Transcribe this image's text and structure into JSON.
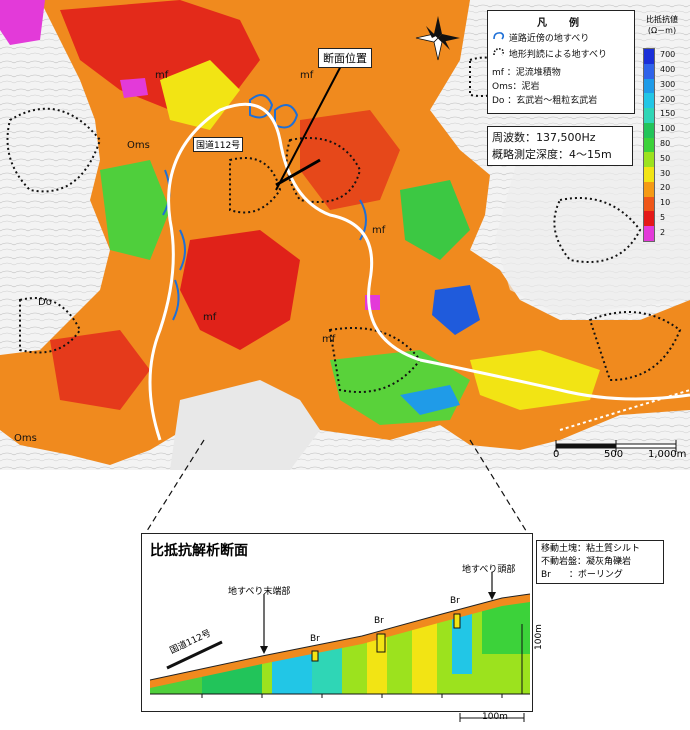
{
  "legend": {
    "title": "凡　例",
    "items": [
      {
        "symbol": "landslide-blue",
        "label": "道路近傍の地すべり"
      },
      {
        "symbol": "landslide-dotted",
        "label": "地形判読による地すべり"
      },
      {
        "symbol": "mf",
        "label": "mf ：泥流堆積物"
      },
      {
        "symbol": "Oms",
        "label": "Oms：泥岩"
      },
      {
        "symbol": "Do",
        "label": "Do ：玄武岩～粗粒玄武岩"
      }
    ]
  },
  "survey": {
    "frequency": "周波数：137,500Hz",
    "depth": "概略測定深度：4～15m"
  },
  "colorbar": {
    "title": "比抵抗値",
    "unit": "(Ω－m)",
    "ticks": [
      "700",
      "400",
      "300",
      "200",
      "150",
      "100",
      "80",
      "50",
      "30",
      "20",
      "10",
      "5",
      "2"
    ],
    "colors": [
      "#1a2fd8",
      "#2f63ea",
      "#1f9be8",
      "#22c6e6",
      "#2fd6b6",
      "#22c45a",
      "#3cd23a",
      "#9ce21e",
      "#f2e414",
      "#f59a14",
      "#ef5618",
      "#e41818",
      "#e33ad9"
    ]
  },
  "map_labels": {
    "section_position": "断面位置",
    "road": "国道112号",
    "geology": [
      "mf",
      "mf",
      "Oms",
      "mf",
      "Do",
      "mf",
      "mf",
      "Oms"
    ]
  },
  "scale_bar": {
    "ticks": [
      "0",
      "500",
      "1,000m"
    ]
  },
  "section": {
    "title": "比抵抗解析断面",
    "labels": {
      "toe": "地すべり末端部",
      "head": "地すべり頭部",
      "road": "国道112号",
      "borings": [
        "Br",
        "Br",
        "Br"
      ]
    },
    "vertical_scale": "100m",
    "horizontal_scale": "100m"
  },
  "section_legend": {
    "rows": [
      "移動土塊：粘土質シルト",
      "不動岩盤：凝灰角礫岩",
      "Br　　：ボーリング"
    ]
  }
}
